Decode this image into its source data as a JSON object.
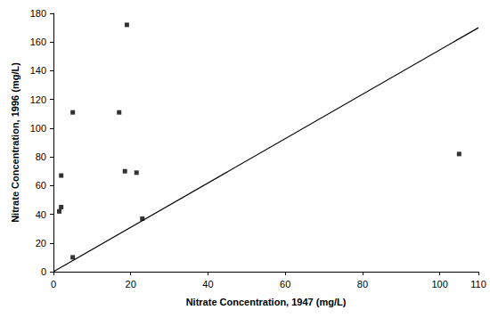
{
  "chart_data": {
    "type": "scatter",
    "x_label": "Nitrate Concentration, 1947 (mg/L)",
    "y_label": "Nitrate Concentration, 1996 (mg/L)",
    "x": [
      19,
      5,
      17,
      2,
      1.5,
      2,
      5,
      18.5,
      21.5,
      23,
      105
    ],
    "values": [
      172,
      111,
      111,
      45,
      42,
      67,
      10,
      70,
      69,
      37,
      82
    ],
    "color": "#000000",
    "marker": "square",
    "reference_line": {
      "x": [
        0,
        110
      ],
      "y": [
        0,
        170
      ]
    },
    "xlim": [
      0,
      110
    ],
    "xticks": [
      0,
      20,
      40,
      60,
      80,
      100
    ],
    "ylim": [
      0,
      180
    ],
    "yticks": [
      0,
      20,
      40,
      60,
      80,
      100,
      120,
      140,
      160,
      180
    ],
    "grid": false
  }
}
